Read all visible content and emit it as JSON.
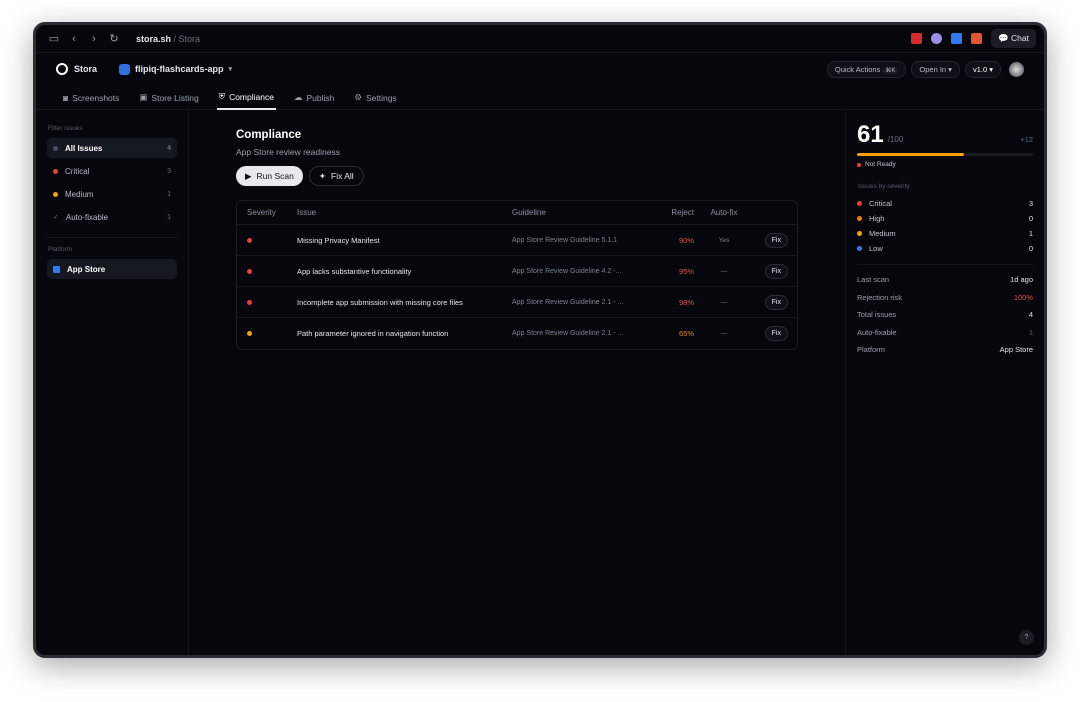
{
  "browser": {
    "url_host": "stora.sh",
    "url_path": " / Stora",
    "chat_label": "Chat"
  },
  "header": {
    "brand": "Stora",
    "project": "flipiq-flashcards-app",
    "quick_actions": "Quick Actions",
    "shortcut": "⌘K",
    "open_in": "Open In",
    "version": "v1.0"
  },
  "tabs": [
    {
      "label": "Screenshots",
      "icon": "camera-icon"
    },
    {
      "label": "Store Listing",
      "icon": "image-icon"
    },
    {
      "label": "Compliance",
      "icon": "shield-icon",
      "active": true
    },
    {
      "label": "Publish",
      "icon": "cloud-upload-icon"
    },
    {
      "label": "Settings",
      "icon": "gear-icon"
    }
  ],
  "sidebar": {
    "filter_title": "Filter issues",
    "filters": [
      {
        "label": "All Issues",
        "count": "4",
        "color": "#4b5160"
      },
      {
        "label": "Critical",
        "count": "3",
        "color": "#ef3b3b"
      },
      {
        "label": "Medium",
        "count": "1",
        "color": "#f5a30b"
      },
      {
        "label": "Auto-fixable",
        "count": "1"
      }
    ],
    "platform_title": "Platform",
    "platform": "App Store"
  },
  "main": {
    "title": "Compliance",
    "subtitle": "App Store review readiness",
    "run_scan": "Run Scan",
    "fix_all": "Fix All",
    "columns": [
      "Severity",
      "Issue",
      "Guideline",
      "Reject",
      "Auto-fix"
    ],
    "rows": [
      {
        "severity_color": "#ef3b3b",
        "issue": "Missing Privacy Manifest",
        "guideline": "App Store Review Guideline 5.1.1",
        "reject": "90%",
        "reject_color": "#e0534a",
        "autofix": "Yes",
        "fix": "Fix"
      },
      {
        "severity_color": "#ef3b3b",
        "issue": "App lacks substantive functionality",
        "guideline": "App Store Review Guideline 4.2 -...",
        "reject": "95%",
        "reject_color": "#e0534a",
        "autofix": "—",
        "fix": "Fix"
      },
      {
        "severity_color": "#ef3b3b",
        "issue": "Incomplete app submission with missing core files",
        "guideline": "App Store Review Guideline 2.1 - ...",
        "reject": "98%",
        "reject_color": "#e0534a",
        "autofix": "—",
        "fix": "Fix"
      },
      {
        "severity_color": "#f5a30b",
        "issue": "Path parameter ignored in navigation function",
        "guideline": "App Store Review Guideline 2.1 - ...",
        "reject": "65%",
        "reject_color": "#e08a1a",
        "autofix": "—",
        "fix": "Fix"
      }
    ]
  },
  "panel": {
    "score": "61",
    "score_max": "/100",
    "score_pct": 61,
    "delta": "+12",
    "status": "Not Ready",
    "severity_title": "Issues by severity",
    "severity": [
      {
        "label": "Critical",
        "count": "3",
        "color": "#ef3b3b"
      },
      {
        "label": "High",
        "count": "0",
        "color": "#f57c0b"
      },
      {
        "label": "Medium",
        "count": "1",
        "color": "#f5a30b"
      },
      {
        "label": "Low",
        "count": "0",
        "color": "#2f7cf0"
      }
    ],
    "stats": [
      {
        "label": "Last scan",
        "value": "1d ago"
      },
      {
        "label": "Rejection risk",
        "value": "100%",
        "color": "#e0534a"
      },
      {
        "label": "Total issues",
        "value": "4"
      },
      {
        "label": "Auto-fixable",
        "value": "1",
        "color": "#4e6d8c"
      },
      {
        "label": "Platform",
        "value": "App Store"
      }
    ]
  },
  "help": "?"
}
